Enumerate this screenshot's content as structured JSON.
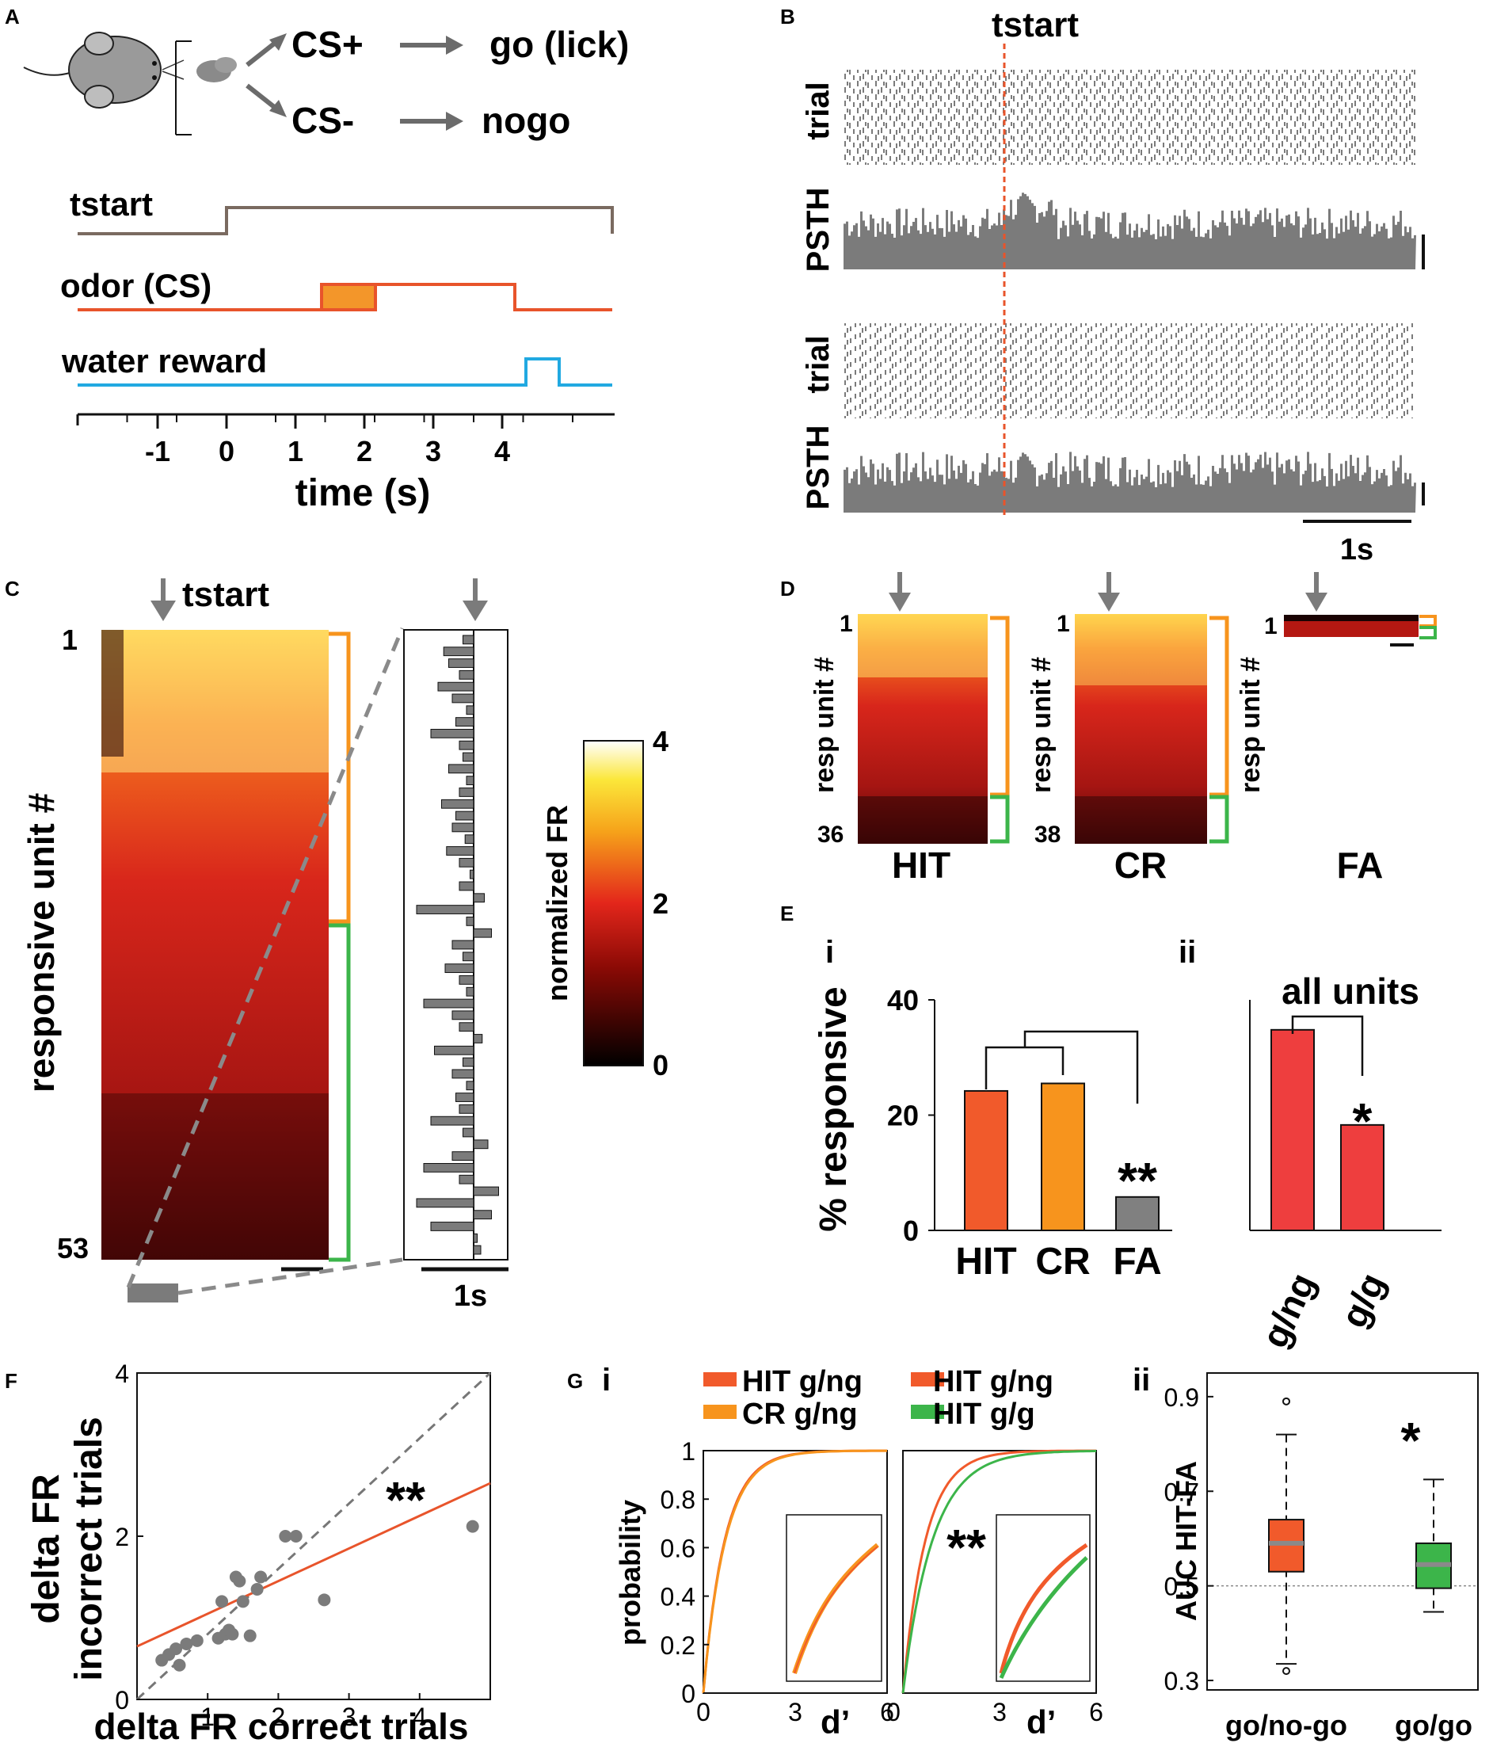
{
  "panelA": {
    "letter": "A",
    "cs_plus": "CS+",
    "go": "go (lick)",
    "cs_minus": "CS-",
    "nogo": "nogo",
    "trace_tstart": "tstart",
    "trace_odor": "odor (CS)",
    "trace_water": "water reward",
    "xlabel": "time (s)",
    "ticks": [
      "-1",
      "0",
      "1",
      "2",
      "3",
      "4"
    ],
    "colors": {
      "tstart": "#7a6a60",
      "odor": "#e8542b",
      "odor_fill": "#f3962a",
      "water": "#21a9e1"
    }
  },
  "panelB": {
    "letter": "B",
    "marker": "tstart",
    "label_trial": "trial",
    "label_psth": "PSTH",
    "scalebar": "1s"
  },
  "panelC": {
    "letter": "C",
    "marker": "tstart",
    "ylabel": "responsive unit #",
    "row_first": "1",
    "row_last": "53",
    "cbar_label": "normalized FR",
    "cbar_ticks": [
      "4",
      "2",
      "0"
    ],
    "scalebar": "1s",
    "bar_profile": [
      -0.15,
      -0.42,
      -0.35,
      -0.2,
      -0.5,
      -0.3,
      -0.1,
      -0.25,
      -0.6,
      -0.2,
      -0.15,
      -0.35,
      -0.1,
      -0.2,
      -0.45,
      -0.25,
      -0.3,
      -0.12,
      -0.38,
      -0.2,
      -0.05,
      -0.2,
      0.15,
      -0.8,
      -0.1,
      0.25,
      -0.3,
      -0.15,
      -0.4,
      -0.2,
      -0.1,
      -0.7,
      -0.3,
      -0.2,
      0.12,
      -0.55,
      -0.15,
      -0.3,
      -0.1,
      -0.25,
      -0.2,
      -0.6,
      -0.15,
      0.2,
      -0.3,
      -0.7,
      -0.2,
      0.35,
      -0.8,
      0.25,
      -0.6,
      0.05,
      0.1
    ]
  },
  "panelD": {
    "letter": "D",
    "ylabel": "resp unit #",
    "maps": [
      {
        "name": "HIT",
        "first": "1",
        "last": "36"
      },
      {
        "name": "CR",
        "first": "1",
        "last": "38"
      },
      {
        "name": "FA",
        "first": "1",
        "last": ""
      }
    ]
  },
  "panelE": {
    "letter": "E",
    "sub_i": "i",
    "sub_ii": "ii",
    "ylabel": "% responsive",
    "yticks": [
      "40",
      "20",
      "0"
    ],
    "ymax": 40,
    "bars_i": [
      {
        "label": "HIT",
        "value": 24.2,
        "color": "#f15a2b"
      },
      {
        "label": "CR",
        "value": 25.5,
        "color": "#f7941d"
      },
      {
        "label": "FA",
        "value": 5.8,
        "color": "#808080"
      }
    ],
    "sig_i": "**",
    "title_ii": "all units",
    "bars_ii": [
      {
        "label": "g/ng",
        "value": 34.8,
        "color": "#ee3e3e"
      },
      {
        "label": "g/g",
        "value": 18.3,
        "color": "#ee3e3e"
      }
    ],
    "sig_ii": "*"
  },
  "panelF": {
    "letter": "F",
    "ylabel1": "delta FR",
    "ylabel2": "incorrect trials",
    "xlabel": "delta FR correct trials",
    "sig": "**",
    "xticks": [
      "1",
      "2",
      "3",
      "4"
    ],
    "yticks": [
      "4",
      "2",
      "0"
    ],
    "fit_color": "#e8542b"
  },
  "panelG": {
    "letter": "G",
    "sub_i": "i",
    "sub_ii": "ii",
    "legend": [
      {
        "label": "HIT g/ng",
        "color": "#f15a2b"
      },
      {
        "label": "CR g/ng",
        "color": "#f7941d"
      },
      {
        "label": "HIT g/ng",
        "color": "#f15a2b"
      },
      {
        "label": "HIT g/g",
        "color": "#3cb54a"
      }
    ],
    "ylabel": "probability",
    "yticks": [
      "1",
      "0.8",
      "0.6",
      "0.4",
      "0.2",
      "0"
    ],
    "xticks_left": [
      "0",
      "3",
      "6"
    ],
    "xticks_right": [
      "0",
      "3",
      "6"
    ],
    "xlabel": "d’",
    "sig": "**",
    "box_ylabel": "AUC HIT-FA",
    "box_yticks": [
      "0.9",
      "0.7",
      "0.5",
      "0.3"
    ],
    "box_xlabels": [
      "go/no-go",
      "go/go"
    ],
    "box_sig": "*"
  },
  "chart_data": [
    {
      "type": "bar",
      "title": "% responsive (E i)",
      "categories": [
        "HIT",
        "CR",
        "FA"
      ],
      "values": [
        24.2,
        25.5,
        5.8
      ],
      "xlabel": "",
      "ylabel": "% responsive",
      "ylim": [
        0,
        40
      ]
    },
    {
      "type": "bar",
      "title": "all units (E ii)",
      "categories": [
        "g/ng",
        "g/g"
      ],
      "values": [
        34.8,
        18.3
      ],
      "xlabel": "",
      "ylabel": "% responsive",
      "ylim": [
        0,
        40
      ]
    },
    {
      "type": "scatter",
      "title": "",
      "xlabel": "delta FR correct trials",
      "ylabel": "delta FR incorrect trials",
      "xlim": [
        0,
        5
      ],
      "ylim": [
        0,
        4
      ],
      "points": [
        [
          0.35,
          0.48
        ],
        [
          0.45,
          0.55
        ],
        [
          0.55,
          0.62
        ],
        [
          0.6,
          0.42
        ],
        [
          0.7,
          0.68
        ],
        [
          0.85,
          0.72
        ],
        [
          1.15,
          0.75
        ],
        [
          1.2,
          1.2
        ],
        [
          1.25,
          0.8
        ],
        [
          1.3,
          0.85
        ],
        [
          1.35,
          0.8
        ],
        [
          1.4,
          1.5
        ],
        [
          1.45,
          1.45
        ],
        [
          1.5,
          1.2
        ],
        [
          1.6,
          0.78
        ],
        [
          1.7,
          1.35
        ],
        [
          1.75,
          1.5
        ],
        [
          2.1,
          2.0
        ],
        [
          2.25,
          2.0
        ],
        [
          2.65,
          1.22
        ],
        [
          4.75,
          2.12
        ]
      ],
      "fit": {
        "slope": 0.4,
        "intercept": 0.65
      },
      "identity_line": true
    },
    {
      "type": "line",
      "title": "cumulative probability (G i)",
      "xlabel": "d’",
      "ylabel": "probability",
      "xlim": [
        0,
        6
      ],
      "ylim": [
        0,
        1
      ],
      "series": [
        {
          "name": "HIT g/ng",
          "color": "#f15a2b",
          "scale": 0.7
        },
        {
          "name": "CR g/ng",
          "color": "#f7941d",
          "scale": 0.72
        }
      ]
    },
    {
      "type": "line",
      "title": "cumulative probability (G ii)",
      "xlabel": "d’",
      "ylabel": "probability",
      "xlim": [
        0,
        6
      ],
      "ylim": [
        0,
        1
      ],
      "series": [
        {
          "name": "HIT g/ng",
          "color": "#f15a2b",
          "scale": 0.7
        },
        {
          "name": "HIT g/g",
          "color": "#3cb54a",
          "scale": 0.92
        }
      ]
    },
    {
      "type": "box",
      "title": "AUC HIT-FA",
      "ylabel": "AUC HIT-FA",
      "ylim": [
        0.28,
        0.95
      ],
      "boxes": [
        {
          "name": "go/no-go",
          "color": "#f15a2b",
          "min": 0.335,
          "q1": 0.53,
          "median": 0.59,
          "q3": 0.64,
          "max": 0.82,
          "outliers": [
            0.89,
            0.32
          ]
        },
        {
          "name": "go/go",
          "color": "#3cb54a",
          "min": 0.445,
          "q1": 0.495,
          "median": 0.545,
          "q3": 0.59,
          "max": 0.725,
          "outliers": []
        }
      ],
      "reference": 0.5
    }
  ]
}
